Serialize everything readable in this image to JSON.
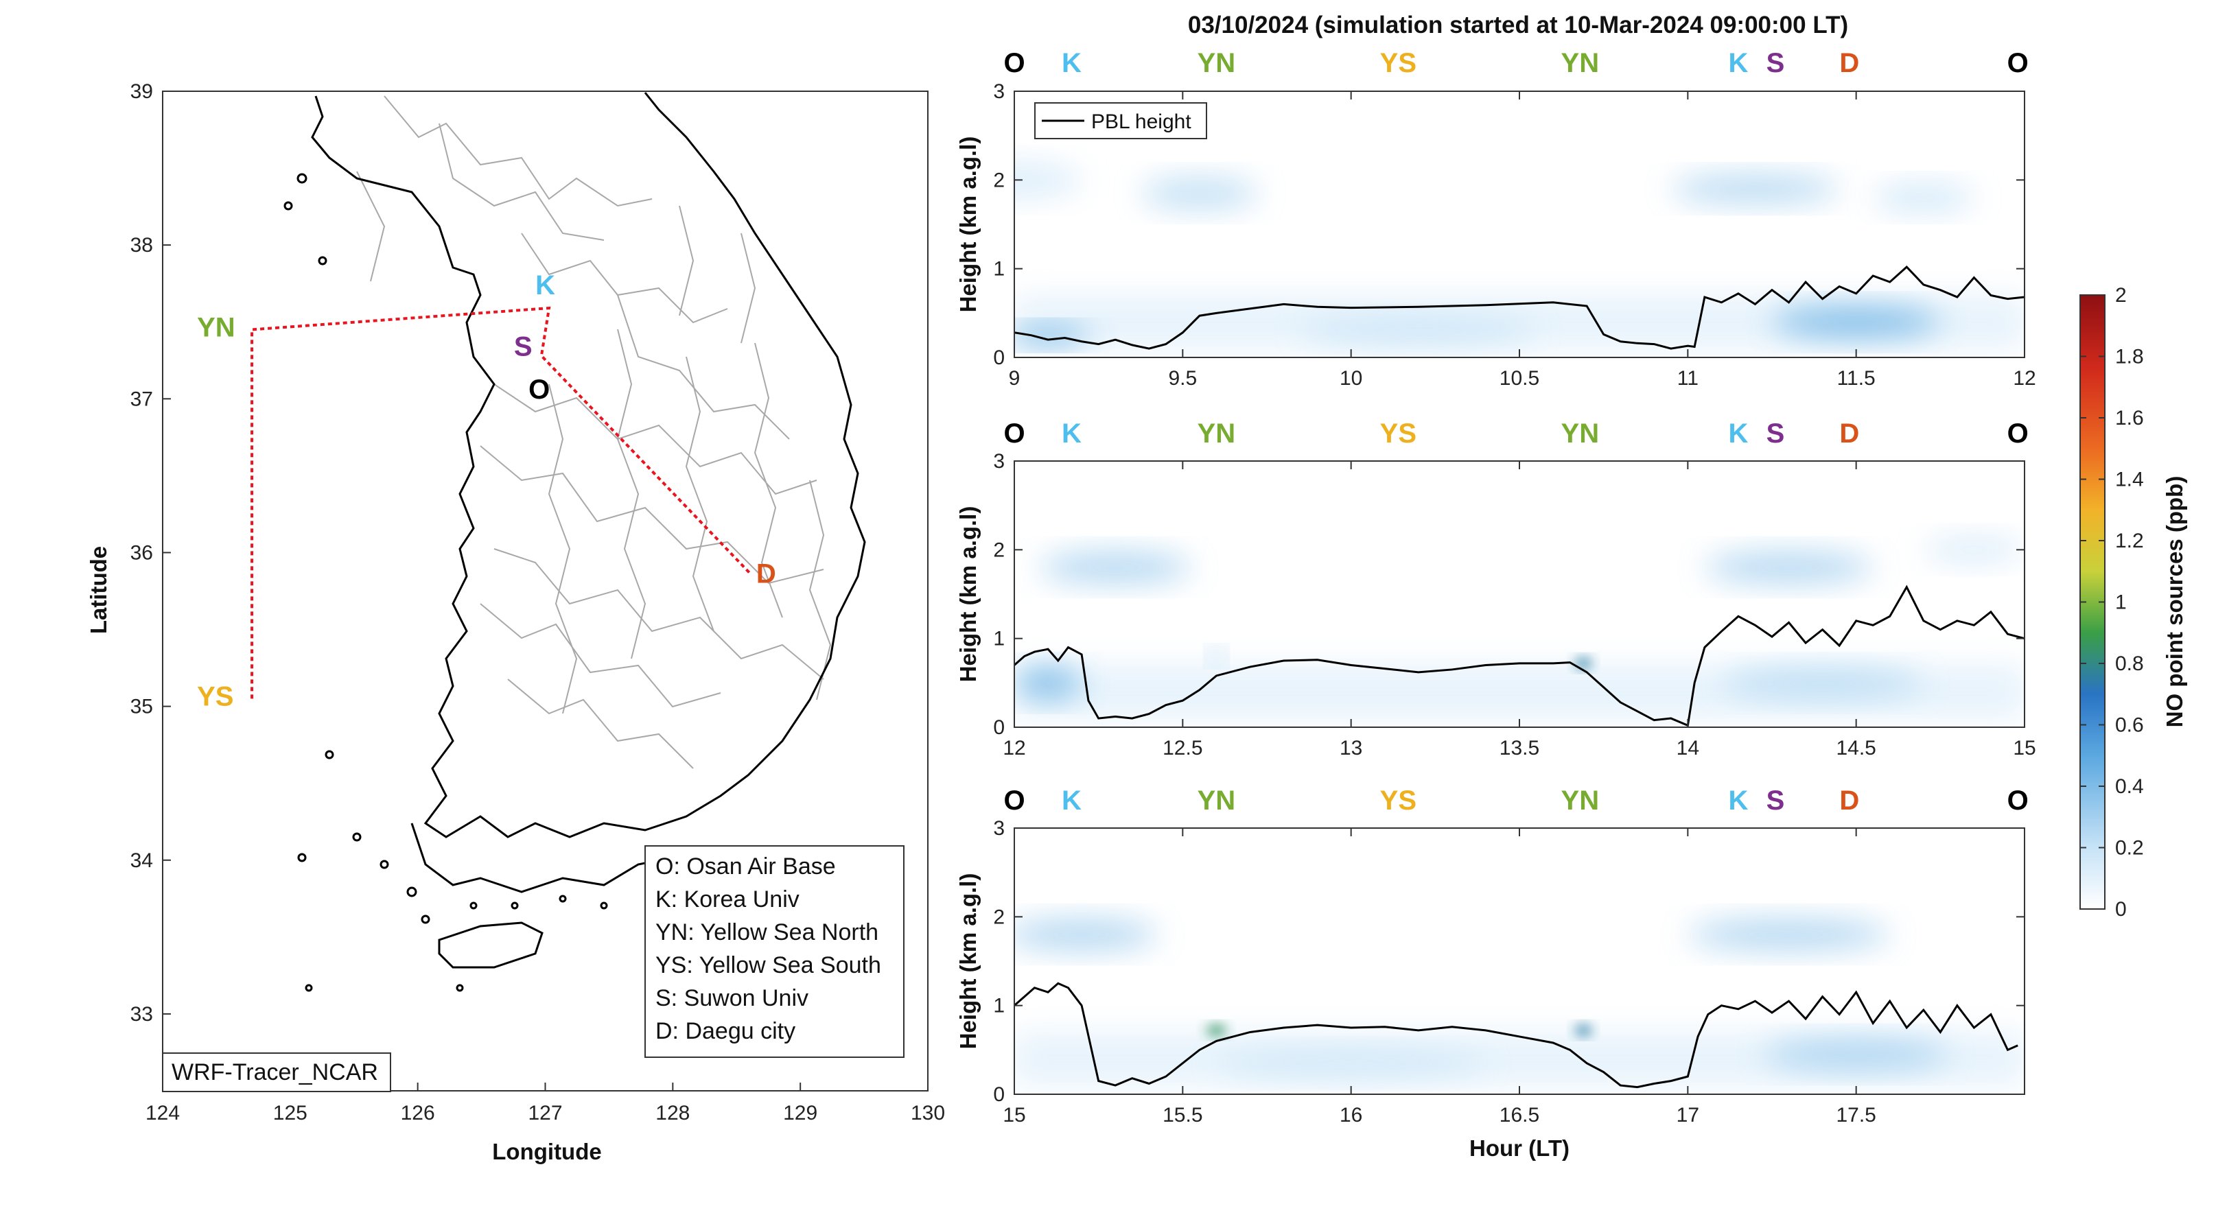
{
  "title": "03/10/2024 (simulation started at 10-Mar-2024 09:00:00 LT)",
  "colors": {
    "O": "#000000",
    "K": "#4DBEEE",
    "YN": "#77AC30",
    "YS": "#EDB120",
    "S": "#7E2F8E",
    "D": "#D95319",
    "route": "#e8141e",
    "pbl": "#000000"
  },
  "map": {
    "xlabel": "Longitude",
    "ylabel": "Latitude",
    "xticks": [
      "124",
      "125",
      "126",
      "127",
      "128",
      "129",
      "130"
    ],
    "yticks": [
      "39",
      "38",
      "37",
      "36",
      "35",
      "34",
      "33"
    ],
    "xlim": [
      124,
      130
    ],
    "ylim": [
      32.5,
      39
    ],
    "model_label": "WRF-Tracer_NCAR",
    "legend": [
      "O: Osan Air Base",
      "K: Korea Univ",
      "YN: Yellow Sea North",
      "YS: Yellow Sea South",
      "S: Suwon Univ",
      "D: Daegu city"
    ],
    "sites": [
      {
        "code": "O",
        "lon": 127.03,
        "lat": 37.09
      },
      {
        "code": "K",
        "lon": 127.03,
        "lat": 37.59
      },
      {
        "code": "S",
        "lon": 126.97,
        "lat": 37.28
      },
      {
        "code": "YN",
        "lon": 124.7,
        "lat": 37.45
      },
      {
        "code": "YS",
        "lon": 124.7,
        "lat": 35.05
      },
      {
        "code": "D",
        "lon": 128.6,
        "lat": 35.87
      }
    ]
  },
  "chart_data": [
    {
      "type": "heatmap",
      "title": "03/10/2024 (simulation started at 10-Mar-2024 09:00:00 LT)",
      "xlim": [
        9,
        12
      ],
      "ylim": [
        0,
        3
      ],
      "xticks": [
        "9",
        "9.5",
        "10",
        "10.5",
        "11",
        "11.5",
        "12"
      ],
      "yticks": [
        "0",
        "1",
        "2",
        "3"
      ],
      "ylabel": "Height (km a.g.l)",
      "legend": "PBL height",
      "top_markers": [
        {
          "code": "O",
          "x": 9.0
        },
        {
          "code": "K",
          "x": 9.17
        },
        {
          "code": "YN",
          "x": 9.6
        },
        {
          "code": "YS",
          "x": 10.14
        },
        {
          "code": "YN",
          "x": 10.68
        },
        {
          "code": "K",
          "x": 11.15
        },
        {
          "code": "S",
          "x": 11.26
        },
        {
          "code": "D",
          "x": 11.48
        },
        {
          "code": "O",
          "x": 11.98
        }
      ],
      "pbl": {
        "x": [
          9.0,
          9.05,
          9.1,
          9.15,
          9.2,
          9.25,
          9.3,
          9.35,
          9.4,
          9.45,
          9.5,
          9.55,
          9.6,
          9.7,
          9.8,
          9.9,
          10.0,
          10.2,
          10.4,
          10.6,
          10.7,
          10.75,
          10.8,
          10.85,
          10.9,
          10.95,
          11.0,
          11.02,
          11.05,
          11.1,
          11.15,
          11.2,
          11.25,
          11.3,
          11.35,
          11.4,
          11.45,
          11.5,
          11.55,
          11.6,
          11.65,
          11.7,
          11.75,
          11.8,
          11.85,
          11.9,
          11.95,
          12.0
        ],
        "y": [
          0.28,
          0.25,
          0.2,
          0.22,
          0.18,
          0.15,
          0.2,
          0.14,
          0.1,
          0.15,
          0.28,
          0.47,
          0.5,
          0.55,
          0.6,
          0.57,
          0.56,
          0.57,
          0.59,
          0.62,
          0.58,
          0.26,
          0.18,
          0.16,
          0.15,
          0.1,
          0.13,
          0.12,
          0.68,
          0.62,
          0.72,
          0.6,
          0.76,
          0.62,
          0.85,
          0.66,
          0.8,
          0.72,
          0.92,
          0.85,
          1.02,
          0.82,
          0.76,
          0.68,
          0.9,
          0.7,
          0.66,
          0.68
        ]
      },
      "blobs": [
        {
          "x": 9.55,
          "y": 1.85,
          "w": 0.35,
          "h": 0.35,
          "v": 0.25
        },
        {
          "x": 9.0,
          "y": 2.0,
          "w": 0.4,
          "h": 0.4,
          "v": 0.15
        },
        {
          "x": 11.2,
          "y": 1.9,
          "w": 0.5,
          "h": 0.3,
          "v": 0.3
        },
        {
          "x": 11.7,
          "y": 1.8,
          "w": 0.3,
          "h": 0.3,
          "v": 0.2
        },
        {
          "x": 9.1,
          "y": 0.25,
          "w": 0.25,
          "h": 0.2,
          "v": 0.5
        },
        {
          "x": 11.5,
          "y": 0.4,
          "w": 0.5,
          "h": 0.35,
          "v": 0.45
        },
        {
          "x": 10.2,
          "y": 0.3,
          "w": 0.7,
          "h": 0.3,
          "v": 0.2
        }
      ]
    },
    {
      "type": "heatmap",
      "xlim": [
        12,
        15
      ],
      "ylim": [
        0,
        3
      ],
      "xticks": [
        "12",
        "12.5",
        "13",
        "13.5",
        "14",
        "14.5",
        "15"
      ],
      "yticks": [
        "0",
        "1",
        "2",
        "3"
      ],
      "ylabel": "Height (km a.g.l)",
      "top_markers": [
        {
          "code": "O",
          "x": 12.0
        },
        {
          "code": "K",
          "x": 12.17
        },
        {
          "code": "YN",
          "x": 12.6
        },
        {
          "code": "YS",
          "x": 13.14
        },
        {
          "code": "YN",
          "x": 13.68
        },
        {
          "code": "K",
          "x": 14.15
        },
        {
          "code": "S",
          "x": 14.26
        },
        {
          "code": "D",
          "x": 14.48
        },
        {
          "code": "O",
          "x": 14.98
        }
      ],
      "pbl": {
        "x": [
          12.0,
          12.03,
          12.06,
          12.1,
          12.13,
          12.16,
          12.2,
          12.22,
          12.25,
          12.3,
          12.35,
          12.4,
          12.45,
          12.5,
          12.55,
          12.6,
          12.7,
          12.8,
          12.9,
          13.0,
          13.1,
          13.2,
          13.3,
          13.4,
          13.5,
          13.6,
          13.65,
          13.7,
          13.75,
          13.8,
          13.85,
          13.9,
          13.95,
          14.0,
          14.02,
          14.05,
          14.1,
          14.15,
          14.2,
          14.25,
          14.3,
          14.35,
          14.4,
          14.45,
          14.5,
          14.55,
          14.6,
          14.65,
          14.7,
          14.75,
          14.8,
          14.85,
          14.9,
          14.95,
          15.0
        ],
        "y": [
          0.7,
          0.8,
          0.85,
          0.88,
          0.75,
          0.9,
          0.82,
          0.3,
          0.1,
          0.12,
          0.1,
          0.15,
          0.25,
          0.3,
          0.42,
          0.58,
          0.68,
          0.75,
          0.76,
          0.7,
          0.66,
          0.62,
          0.65,
          0.7,
          0.72,
          0.72,
          0.73,
          0.62,
          0.45,
          0.28,
          0.18,
          0.08,
          0.1,
          0.02,
          0.5,
          0.9,
          1.08,
          1.25,
          1.15,
          1.02,
          1.18,
          0.95,
          1.1,
          0.92,
          1.2,
          1.15,
          1.25,
          1.58,
          1.2,
          1.1,
          1.2,
          1.15,
          1.3,
          1.05,
          1.0
        ]
      },
      "blobs": [
        {
          "x": 12.3,
          "y": 1.8,
          "w": 0.45,
          "h": 0.35,
          "v": 0.3
        },
        {
          "x": 14.3,
          "y": 1.8,
          "w": 0.5,
          "h": 0.35,
          "v": 0.3
        },
        {
          "x": 14.85,
          "y": 2.0,
          "w": 0.3,
          "h": 0.3,
          "v": 0.15
        },
        {
          "x": 12.1,
          "y": 0.5,
          "w": 0.2,
          "h": 0.35,
          "v": 0.45
        },
        {
          "x": 12.6,
          "y": 0.8,
          "w": 0.04,
          "h": 0.15,
          "v": 0.5
        },
        {
          "x": 13.69,
          "y": 0.72,
          "w": 0.05,
          "h": 0.1,
          "v": 0.75
        },
        {
          "x": 14.4,
          "y": 0.5,
          "w": 0.6,
          "h": 0.35,
          "v": 0.25
        }
      ]
    },
    {
      "type": "heatmap",
      "xlim": [
        15,
        18
      ],
      "ylim": [
        0,
        3
      ],
      "xticks": [
        "15",
        "15.5",
        "16",
        "16.5",
        "17",
        "17.5"
      ],
      "yticks": [
        "0",
        "1",
        "2",
        "3"
      ],
      "ylabel": "Height (km a.g.l)",
      "xlabel": "Hour (LT)",
      "top_markers": [
        {
          "code": "O",
          "x": 15.0
        },
        {
          "code": "K",
          "x": 15.17
        },
        {
          "code": "YN",
          "x": 15.6
        },
        {
          "code": "YS",
          "x": 16.14
        },
        {
          "code": "YN",
          "x": 16.68
        },
        {
          "code": "K",
          "x": 17.15
        },
        {
          "code": "S",
          "x": 17.26
        },
        {
          "code": "D",
          "x": 17.48
        },
        {
          "code": "O",
          "x": 17.98
        }
      ],
      "pbl": {
        "x": [
          15.0,
          15.03,
          15.06,
          15.1,
          15.13,
          15.16,
          15.2,
          15.25,
          15.3,
          15.35,
          15.4,
          15.45,
          15.5,
          15.55,
          15.6,
          15.7,
          15.8,
          15.9,
          16.0,
          16.1,
          16.2,
          16.3,
          16.4,
          16.5,
          16.6,
          16.65,
          16.7,
          16.75,
          16.8,
          16.85,
          16.9,
          16.95,
          17.0,
          17.03,
          17.06,
          17.1,
          17.15,
          17.2,
          17.25,
          17.3,
          17.35,
          17.4,
          17.45,
          17.5,
          17.55,
          17.6,
          17.65,
          17.7,
          17.75,
          17.8,
          17.85,
          17.9,
          17.95,
          17.98
        ],
        "y": [
          1.0,
          1.1,
          1.2,
          1.15,
          1.25,
          1.2,
          1.0,
          0.15,
          0.1,
          0.18,
          0.12,
          0.2,
          0.35,
          0.5,
          0.6,
          0.7,
          0.75,
          0.78,
          0.75,
          0.76,
          0.72,
          0.76,
          0.72,
          0.65,
          0.58,
          0.5,
          0.35,
          0.25,
          0.1,
          0.08,
          0.12,
          0.15,
          0.2,
          0.65,
          0.9,
          1.0,
          0.96,
          1.05,
          0.92,
          1.05,
          0.85,
          1.1,
          0.9,
          1.15,
          0.8,
          1.05,
          0.75,
          0.95,
          0.7,
          1.0,
          0.75,
          0.9,
          0.5,
          0.55
        ]
      },
      "blobs": [
        {
          "x": 15.2,
          "y": 1.8,
          "w": 0.45,
          "h": 0.35,
          "v": 0.3
        },
        {
          "x": 17.3,
          "y": 1.8,
          "w": 0.6,
          "h": 0.35,
          "v": 0.3
        },
        {
          "x": 15.6,
          "y": 0.72,
          "w": 0.06,
          "h": 0.1,
          "v": 0.85
        },
        {
          "x": 16.69,
          "y": 0.72,
          "w": 0.05,
          "h": 0.1,
          "v": 0.75
        },
        {
          "x": 17.5,
          "y": 0.45,
          "w": 0.55,
          "h": 0.35,
          "v": 0.3
        },
        {
          "x": 16.0,
          "y": 0.35,
          "w": 0.8,
          "h": 0.3,
          "v": 0.18
        }
      ]
    },
    {
      "type": "colorbar",
      "label": "NO point sources (ppb)",
      "range": [
        0,
        2
      ],
      "ticks": [
        "0",
        "0.2",
        "0.4",
        "0.6",
        "0.8",
        "1",
        "1.2",
        "1.4",
        "1.6",
        "1.8",
        "2"
      ]
    }
  ]
}
